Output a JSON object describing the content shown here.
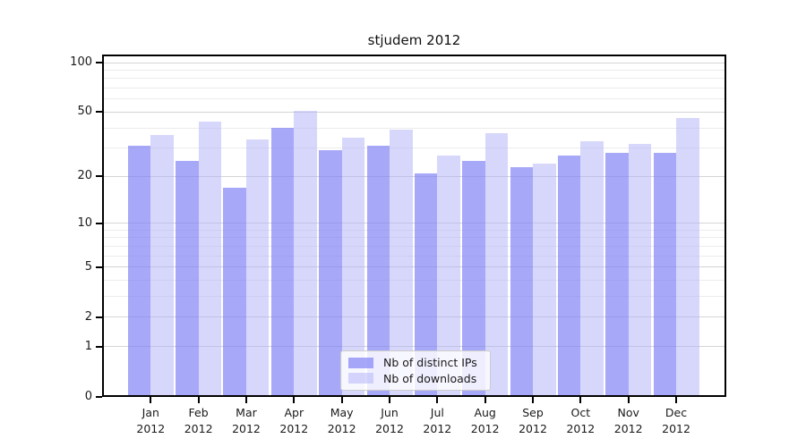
{
  "chart_data": {
    "type": "bar",
    "title": "stjudem 2012",
    "x_tick_months": [
      "Jan",
      "Feb",
      "Mar",
      "Apr",
      "May",
      "Jun",
      "Jul",
      "Aug",
      "Sep",
      "Oct",
      "Nov",
      "Dec"
    ],
    "x_tick_year": "2012",
    "series": [
      {
        "name": "Nb of distinct IPs",
        "color": "rgba(131,131,247,0.70)",
        "solid_color": "#a9a9fa",
        "values": [
          31,
          25,
          17,
          40,
          29,
          31,
          21,
          25,
          23,
          27,
          28,
          28
        ]
      },
      {
        "name": "Nb of downloads",
        "color": "rgba(178,178,250,0.52)",
        "solid_color": "#d8d8fc",
        "values": [
          36,
          44,
          34,
          51,
          35,
          39,
          27,
          37,
          24,
          33,
          32,
          46
        ]
      }
    ],
    "yscale": "log1p",
    "ylim": [
      0,
      100
    ],
    "yticks_major": [
      0,
      1,
      2,
      5,
      10,
      20,
      50,
      100
    ],
    "yticks_minor": [
      3,
      4,
      6,
      7,
      8,
      9,
      30,
      40,
      60,
      70,
      80,
      90
    ],
    "grid": true,
    "legend": {
      "position": "lower center",
      "labels": [
        "Nb of distinct IPs",
        "Nb of downloads"
      ]
    }
  },
  "colors": {
    "background": "#ffffff",
    "axis": "#000000",
    "grid_major": "#d4d4d4",
    "grid_minor": "#ececec",
    "text": "#1a1a1a",
    "legend_border": "#cccccc"
  }
}
